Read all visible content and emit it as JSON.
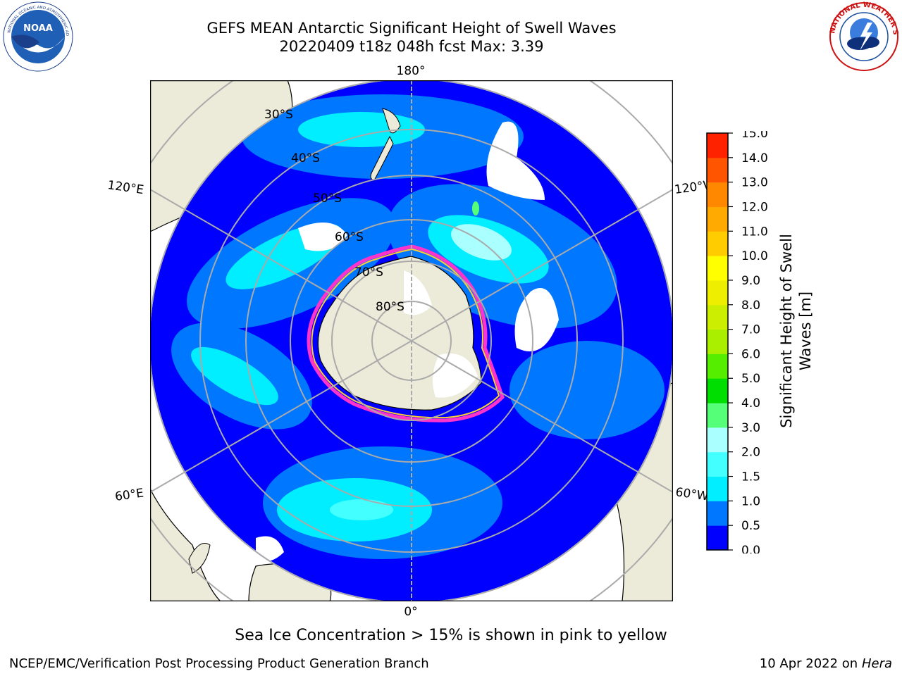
{
  "title_line1": "GEFS MEAN Antarctic Significant Height of Swell Waves",
  "title_line2": "20220409 t18z 048h fcst   Max: 3.39",
  "logos": {
    "left": "noaa-logo",
    "right": "nws-logo"
  },
  "map": {
    "projection": "south-polar-stereographic",
    "meridian_labels": {
      "top": "180°",
      "bottom": "0°",
      "upper_left": "120°E",
      "upper_right": "120°W",
      "lower_left": "60°E",
      "lower_right": "60°W"
    },
    "parallel_labels": [
      "30°S",
      "40°S",
      "50°S",
      "60°S",
      "70°S",
      "80°S"
    ],
    "colors": {
      "land": "#ecebd9",
      "ice_free_white": "#ffffff",
      "ice_edge": [
        "#ff33cc",
        "#ffcc33"
      ]
    }
  },
  "colorbar": {
    "label": "Significant Height of Swell Waves [m]",
    "label_line1": "Significant Height of Swell",
    "label_line2": "Waves [m]",
    "ticks": [
      "0.0",
      "0.5",
      "1.0",
      "1.5",
      "2.0",
      "3.0",
      "4.0",
      "5.0",
      "6.0",
      "7.0",
      "8.0",
      "9.0",
      "10.0",
      "11.0",
      "12.0",
      "13.0",
      "14.0",
      "15.0"
    ],
    "colors": [
      "#0000ff",
      "#0077ff",
      "#00eeff",
      "#44ffff",
      "#aaffff",
      "#55ff77",
      "#00dd00",
      "#55ee00",
      "#aaee00",
      "#ccee00",
      "#eeee00",
      "#ffff00",
      "#ffcc00",
      "#ffaa00",
      "#ff8800",
      "#ff5500",
      "#ff2200"
    ]
  },
  "note": "Sea Ice Concentration > 15% is shown in pink to yellow",
  "credit": "NCEP/EMC/Verification Post Processing Product Generation Branch",
  "date_text": "10 Apr 2022 on ",
  "date_host": "Hera"
}
